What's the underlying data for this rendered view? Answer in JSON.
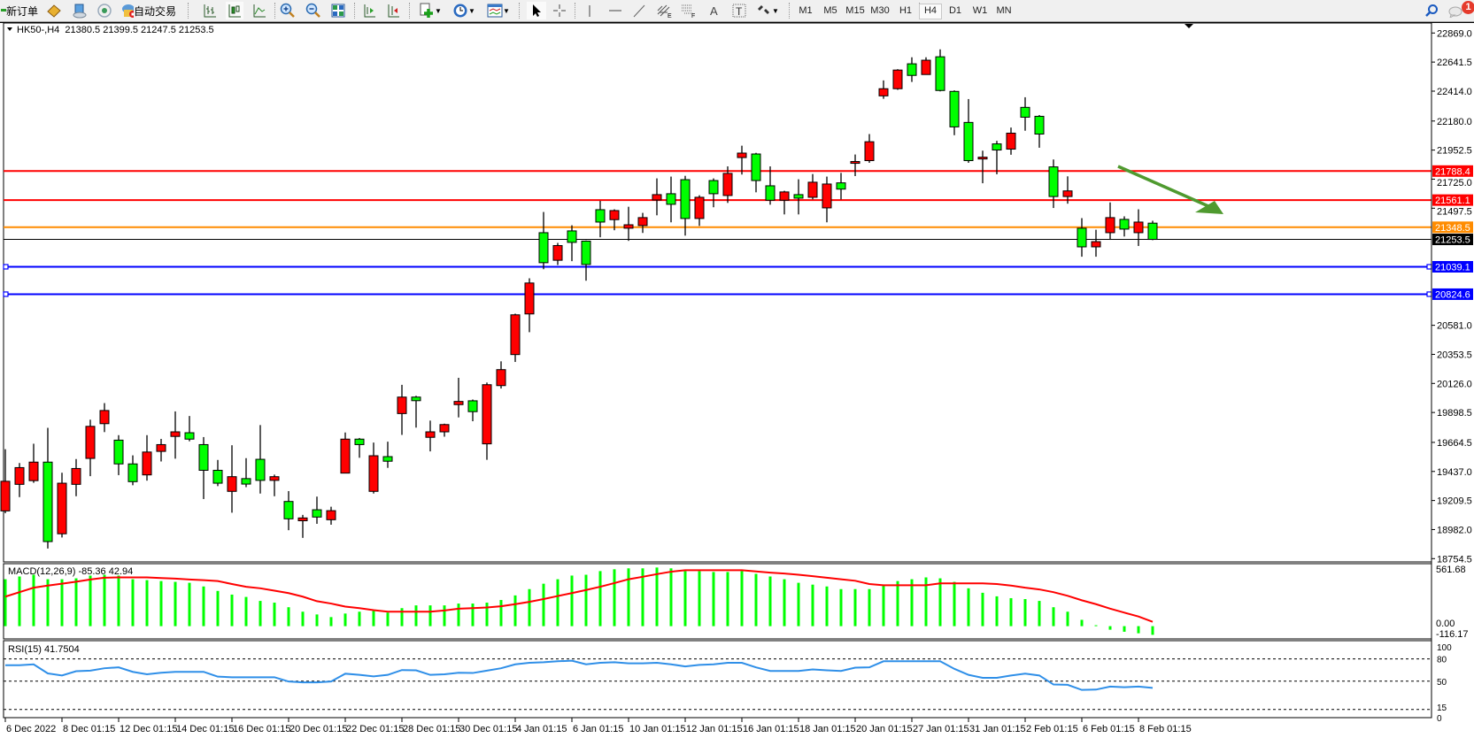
{
  "toolbar": {
    "new_order_label": "新订单",
    "auto_trading_label": "自动交易",
    "icons": [
      "new-order-icon",
      "market-watch-icon",
      "data-window-icon",
      "signals-icon",
      "auto-trading-icon",
      "bar-chart-icon",
      "candlestick-icon",
      "line-chart-icon",
      "zoom-in-icon",
      "zoom-out-icon",
      "tile-windows-icon",
      "chart-shift-icon",
      "auto-scroll-icon",
      "new-chart-icon",
      "periods-clock-icon",
      "templates-icon",
      "cursor-icon",
      "crosshair-icon",
      "vertical-line-icon",
      "horizontal-line-icon",
      "trendline-icon",
      "equidistant-channel-icon",
      "fibonacci-icon",
      "text-icon",
      "text-label-icon",
      "arrows-icon",
      "search-icon",
      "notifications-icon"
    ],
    "timeframes": [
      "M1",
      "M5",
      "M15",
      "M30",
      "H1",
      "H4",
      "D1",
      "W1",
      "MN"
    ],
    "active_timeframe": "H4",
    "notification_count": "1"
  },
  "chart_data": {
    "type": "candlestick",
    "symbol_header": "HK50-,H4  21380.5 21399.5 21247.5 21253.5",
    "up_color": "#ff0000",
    "down_color": "#00ff00",
    "price_range": [
      18754.5,
      22869.0
    ],
    "price_ticks": [
      "22869.0",
      "22641.5",
      "22414.0",
      "22180.0",
      "21952.5",
      "21725.0",
      "21497.5",
      "20581.0",
      "20353.5",
      "20126.0",
      "19898.5",
      "19664.5",
      "19437.0",
      "19209.5",
      "18982.0",
      "18754.5"
    ],
    "x_labels": [
      "6 Dec 2022",
      "8 Dec 01:15",
      "12 Dec 01:15",
      "14 Dec 01:15",
      "16 Dec 01:15",
      "20 Dec 01:15",
      "22 Dec 01:15",
      "28 Dec 01:15",
      "30 Dec 01:15",
      "4 Jan 01:15",
      "6 Jan 01:15",
      "10 Jan 01:15",
      "12 Jan 01:15",
      "16 Jan 01:15",
      "18 Jan 01:15",
      "20 Jan 01:15",
      "27 Jan 01:15",
      "31 Jan 01:15",
      "2 Feb 01:15",
      "6 Feb 01:15",
      "8 Feb 01:15"
    ],
    "x_label_every": 4,
    "candles_ohlc": [
      [
        19128,
        19611,
        19110,
        19360
      ],
      [
        19336,
        19503,
        19236,
        19467
      ],
      [
        19365,
        19654,
        19348,
        19510
      ],
      [
        19510,
        19778,
        18834,
        18888
      ],
      [
        18949,
        19427,
        18920,
        19345
      ],
      [
        19336,
        19534,
        19243,
        19460
      ],
      [
        19539,
        19842,
        19400,
        19790
      ],
      [
        19811,
        19972,
        19745,
        19914
      ],
      [
        19682,
        19721,
        19408,
        19496
      ],
      [
        19496,
        19563,
        19329,
        19357
      ],
      [
        19410,
        19721,
        19365,
        19589
      ],
      [
        19594,
        19692,
        19515,
        19647
      ],
      [
        19711,
        19907,
        19537,
        19747
      ],
      [
        19740,
        19871,
        19673,
        19690
      ],
      [
        19647,
        19706,
        19221,
        19446
      ],
      [
        19446,
        19527,
        19322,
        19345
      ],
      [
        19281,
        19642,
        19114,
        19396
      ],
      [
        19381,
        19541,
        19314,
        19338
      ],
      [
        19532,
        19800,
        19264,
        19367
      ],
      [
        19367,
        19412,
        19243,
        19396
      ],
      [
        19202,
        19283,
        18977,
        19066
      ],
      [
        19051,
        19097,
        18917,
        19073
      ],
      [
        19137,
        19240,
        19027,
        19080
      ],
      [
        19059,
        19161,
        19020,
        19130
      ],
      [
        19424,
        19742,
        19422,
        19690
      ],
      [
        19690,
        19699,
        19544,
        19647
      ],
      [
        19281,
        19663,
        19264,
        19560
      ],
      [
        19553,
        19670,
        19465,
        19517
      ],
      [
        19890,
        20115,
        19723,
        20019
      ],
      [
        20019,
        20029,
        19780,
        19991
      ],
      [
        19704,
        19835,
        19594,
        19747
      ],
      [
        19747,
        19811,
        19709,
        19804
      ],
      [
        19960,
        20170,
        19860,
        19985
      ],
      [
        19990,
        20000,
        19830,
        19905
      ],
      [
        19653,
        20133,
        19528,
        20116
      ],
      [
        20109,
        20299,
        20086,
        20234
      ],
      [
        20352,
        20672,
        20294,
        20663
      ],
      [
        20670,
        20949,
        20527,
        20912
      ],
      [
        21306,
        21468,
        21020,
        21071
      ],
      [
        21090,
        21226,
        21053,
        21205
      ],
      [
        21320,
        21364,
        21083,
        21230
      ],
      [
        21240,
        21245,
        20930,
        21057
      ],
      [
        21486,
        21555,
        21270,
        21389
      ],
      [
        21408,
        21489,
        21325,
        21479
      ],
      [
        21341,
        21509,
        21242,
        21368
      ],
      [
        21362,
        21461,
        21304,
        21424
      ],
      [
        21562,
        21731,
        21442,
        21604
      ],
      [
        21611,
        21745,
        21387,
        21528
      ],
      [
        21721,
        21751,
        21283,
        21417
      ],
      [
        21417,
        21599,
        21359,
        21583
      ],
      [
        21714,
        21731,
        21505,
        21611
      ],
      [
        21597,
        21825,
        21539,
        21770
      ],
      [
        21894,
        21987,
        21761,
        21929
      ],
      [
        21922,
        21931,
        21622,
        21714
      ],
      [
        21673,
        21825,
        21525,
        21560
      ],
      [
        21560,
        21634,
        21449,
        21625
      ],
      [
        21604,
        21724,
        21449,
        21576
      ],
      [
        21583,
        21765,
        21567,
        21701
      ],
      [
        21500,
        21745,
        21387,
        21687
      ],
      [
        21696,
        21774,
        21566,
        21647
      ],
      [
        21849,
        21918,
        21749,
        21863
      ],
      [
        21870,
        22078,
        21853,
        22018
      ],
      [
        22377,
        22498,
        22354,
        22433
      ],
      [
        22433,
        22586,
        22424,
        22579
      ],
      [
        22628,
        22679,
        22486,
        22537
      ],
      [
        22544,
        22679,
        22544,
        22656
      ],
      [
        22683,
        22741,
        22412,
        22419
      ],
      [
        22412,
        22420,
        22069,
        22134
      ],
      [
        22169,
        22352,
        21853,
        21870
      ],
      [
        21883,
        21948,
        21693,
        21897
      ],
      [
        22001,
        22025,
        21763,
        21953
      ],
      [
        21960,
        22129,
        21916,
        22085
      ],
      [
        22287,
        22366,
        22104,
        22210
      ],
      [
        22217,
        22227,
        21971,
        22078
      ],
      [
        21821,
        21879,
        21499,
        21589
      ],
      [
        21589,
        21747,
        21533,
        21633
      ],
      [
        21341,
        21420,
        21118,
        21195
      ],
      [
        21195,
        21329,
        21118,
        21236
      ],
      [
        21306,
        21543,
        21250,
        21424
      ],
      [
        21410,
        21434,
        21276,
        21334
      ],
      [
        21306,
        21489,
        21202,
        21389
      ],
      [
        21380.5,
        21399.5,
        21247.5,
        21253.5
      ]
    ],
    "horizontal_lines": [
      {
        "price": 21788.4,
        "label": "21788.4",
        "color": "#ff0000"
      },
      {
        "price": 21561.1,
        "label": "21561.1",
        "color": "#ff0000"
      },
      {
        "price": 21348.5,
        "label": "21348.5",
        "color": "#ff8c00"
      },
      {
        "price": 21253.5,
        "label": "21253.5",
        "color": "#000000"
      },
      {
        "price": 21039.1,
        "label": "21039.1",
        "color": "#0000ff"
      },
      {
        "price": 20824.6,
        "label": "20824.6",
        "color": "#0000ff"
      }
    ],
    "annotation_arrow": {
      "color": "#4f9a2f",
      "direction": "down-right"
    },
    "macd": {
      "label": "MACD(12,26,9) -85.36 42.94",
      "axis_labels": [
        "561.68",
        "0.00",
        "-116.17"
      ],
      "range": [
        -116.17,
        561.68
      ],
      "histogram_color": "#00ff00",
      "signal_color": "#ff0000",
      "histogram": [
        461,
        488,
        505,
        461,
        461,
        470,
        497,
        505,
        497,
        461,
        452,
        443,
        435,
        426,
        390,
        346,
        310,
        287,
        248,
        231,
        186,
        142,
        115,
        89,
        124,
        142,
        151,
        133,
        177,
        204,
        204,
        204,
        222,
        222,
        231,
        257,
        302,
        364,
        417,
        461,
        497,
        505,
        541,
        559,
        568,
        568,
        576,
        568,
        541,
        541,
        532,
        532,
        541,
        514,
        488,
        461,
        426,
        408,
        390,
        364,
        364,
        364,
        399,
        443,
        461,
        479,
        470,
        435,
        372,
        328,
        293,
        275,
        266,
        248,
        186,
        142,
        62,
        9,
        -35,
        -55,
        -70,
        -85.36
      ],
      "signal": [
        290,
        334,
        378,
        399,
        417,
        437,
        458,
        476,
        479,
        479,
        479,
        473,
        467,
        458,
        452,
        443,
        414,
        387,
        372,
        349,
        325,
        290,
        245,
        222,
        192,
        177,
        157,
        142,
        142,
        142,
        142,
        154,
        171,
        177,
        183,
        195,
        216,
        239,
        266,
        296,
        325,
        355,
        387,
        423,
        461,
        485,
        511,
        535,
        550,
        550,
        550,
        550,
        550,
        538,
        526,
        517,
        505,
        491,
        476,
        461,
        446,
        414,
        402,
        402,
        402,
        402,
        420,
        420,
        420,
        420,
        414,
        399,
        378,
        361,
        334,
        298,
        254,
        216,
        172,
        133,
        95,
        42.94
      ]
    },
    "rsi": {
      "label": "RSI(15) 41.7504",
      "axis_labels": [
        "100",
        "80",
        "50",
        "15",
        "0"
      ],
      "levels": [
        80,
        50,
        15
      ],
      "line_color": "#2f8fe8",
      "values": [
        71.5,
        71.5,
        72.7,
        60.5,
        57.7,
        63.4,
        64.2,
        67.4,
        68.6,
        62.6,
        59.3,
        61.4,
        62.6,
        62.6,
        62.6,
        56.1,
        55.3,
        55.3,
        55.3,
        55.3,
        49.6,
        48.5,
        48.5,
        49.6,
        60.1,
        58.5,
        56.5,
        58.5,
        65,
        64.6,
        58.5,
        59.3,
        61.4,
        61,
        64.2,
        67.4,
        72.7,
        74.7,
        75.5,
        76.8,
        77.6,
        72.7,
        74.7,
        75.5,
        74,
        74,
        74.7,
        72.7,
        69.9,
        71.9,
        72.7,
        74.7,
        74.7,
        68.6,
        63.8,
        63.8,
        63.8,
        65.8,
        64.6,
        63.8,
        68.2,
        68.6,
        76.8,
        76.8,
        76.8,
        76.8,
        76.8,
        66.6,
        58.5,
        54.5,
        54.5,
        57.7,
        60.1,
        57.7,
        45.9,
        45.5,
        39.2,
        39.6,
        43.3,
        42.6,
        43.3,
        41.75
      ]
    }
  }
}
